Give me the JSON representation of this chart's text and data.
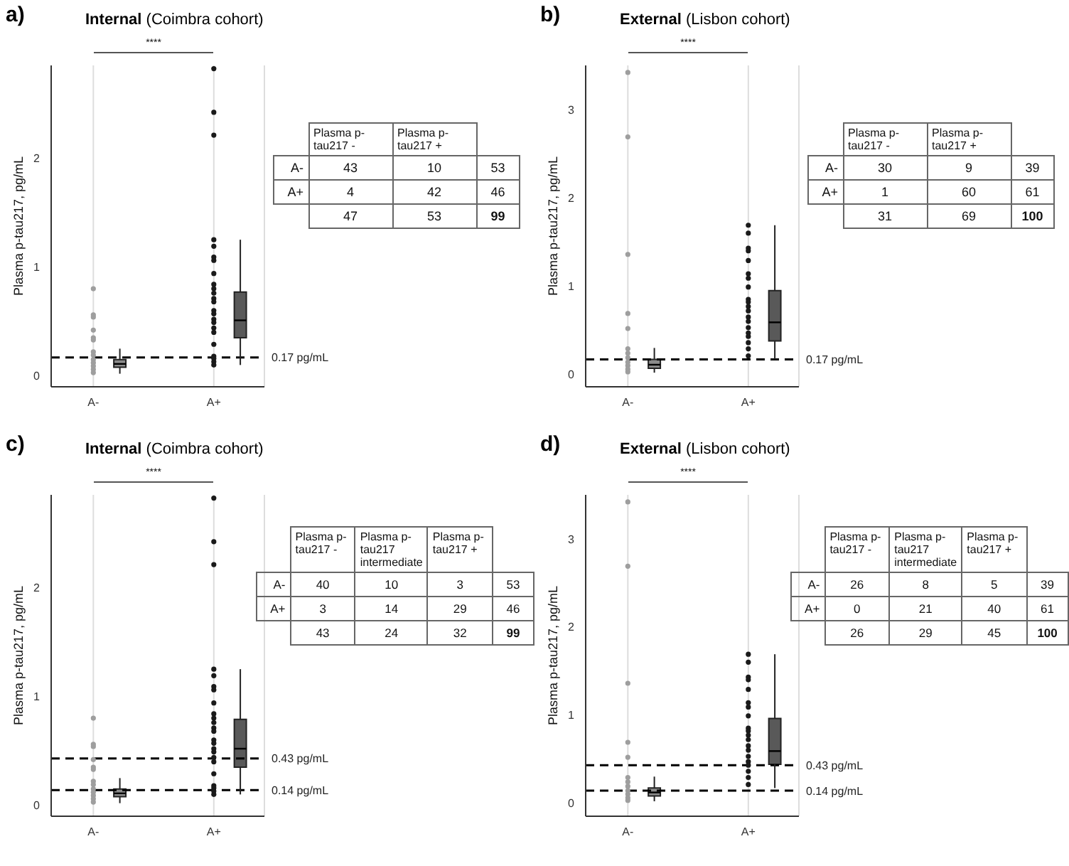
{
  "chart_data": [
    {
      "type": "box",
      "title": "Internal (Coimbra cohort)",
      "ylabel": "Plasma p-tau217, pg/mL",
      "annotations": [
        "a)",
        "****"
      ],
      "categories": [
        "A-",
        "A+"
      ],
      "colors": [
        "#8c8c8c",
        "#595959"
      ],
      "ylim": [
        -0.1,
        2.85
      ],
      "yticks": [
        0,
        1,
        2
      ],
      "grid": "x",
      "boxes": [
        {
          "low": 0.02,
          "q1": 0.08,
          "median": 0.11,
          "q3": 0.15,
          "high": 0.25
        },
        {
          "low": 0.1,
          "q1": 0.35,
          "median": 0.51,
          "q3": 0.77,
          "high": 1.25
        }
      ],
      "series": [
        {
          "type": "scatter",
          "color": "#9e9e9e",
          "x": [
            "A-",
            "A-",
            "A-",
            "A-",
            "A-",
            "A-",
            "A-",
            "A-",
            "A-",
            "A-",
            "A-",
            "A-",
            "A-"
          ],
          "values": [
            0.8,
            0.56,
            0.54,
            0.42,
            0.35,
            0.33,
            0.22,
            0.19,
            0.15,
            0.12,
            0.09,
            0.06,
            0.03
          ]
        },
        {
          "type": "scatter",
          "color": "#1a1a1a",
          "x": [
            "A+",
            "A+",
            "A+",
            "A+",
            "A+",
            "A+",
            "A+",
            "A+",
            "A+",
            "A+",
            "A+",
            "A+",
            "A+",
            "A+",
            "A+",
            "A+",
            "A+",
            "A+",
            "A+",
            "A+",
            "A+",
            "A+",
            "A+",
            "A+"
          ],
          "values": [
            2.82,
            2.42,
            2.21,
            1.25,
            1.19,
            1.09,
            1.06,
            0.94,
            0.84,
            0.8,
            0.76,
            0.71,
            0.68,
            0.6,
            0.57,
            0.52,
            0.49,
            0.44,
            0.4,
            0.29,
            0.18,
            0.16,
            0.13,
            0.1
          ]
        }
      ],
      "ref_lines": [
        {
          "axis": "y",
          "value": 0.17,
          "label": "0.17 pg/mL",
          "line_style": "dashed",
          "color": "#000000"
        }
      ]
    },
    {
      "type": "heatmap",
      "data_labels": true,
      "categories": [
        "Plasma p-tau217 -",
        "Plasma p-tau217 +",
        null
      ],
      "y_categories": [
        "A-",
        "A+",
        null
      ],
      "cells": [
        [
          43,
          10,
          53
        ],
        [
          4,
          42,
          46
        ],
        [
          47,
          53,
          99
        ]
      ]
    },
    {
      "type": "box",
      "title": "External (Lisbon cohort)",
      "ylabel": "Plasma p-tau217, pg/mL",
      "annotations": [
        "b)",
        "****"
      ],
      "categories": [
        "A-",
        "A+"
      ],
      "colors": [
        "#8c8c8c",
        "#595959"
      ],
      "ylim": [
        -0.14,
        3.5
      ],
      "yticks": [
        0,
        1,
        2,
        3
      ],
      "grid": "x",
      "boxes": [
        {
          "low": 0.02,
          "q1": 0.07,
          "median": 0.11,
          "q3": 0.17,
          "high": 0.3
        },
        {
          "low": 0.17,
          "q1": 0.38,
          "median": 0.59,
          "q3": 0.95,
          "high": 1.69
        }
      ],
      "series": [
        {
          "type": "scatter",
          "color": "#9e9e9e",
          "x": [
            "A-",
            "A-",
            "A-",
            "A-",
            "A-",
            "A-",
            "A-",
            "A-",
            "A-",
            "A-",
            "A-",
            "A-"
          ],
          "values": [
            3.42,
            2.69,
            1.36,
            0.69,
            0.52,
            0.29,
            0.24,
            0.19,
            0.14,
            0.1,
            0.06,
            0.03
          ]
        },
        {
          "type": "scatter",
          "color": "#1a1a1a",
          "x": [
            "A+",
            "A+",
            "A+",
            "A+",
            "A+",
            "A+",
            "A+",
            "A+",
            "A+",
            "A+",
            "A+",
            "A+",
            "A+",
            "A+",
            "A+",
            "A+",
            "A+",
            "A+",
            "A+",
            "A+"
          ],
          "values": [
            1.69,
            1.6,
            1.43,
            1.4,
            1.29,
            1.14,
            1.09,
            0.99,
            0.85,
            0.82,
            0.77,
            0.72,
            0.65,
            0.6,
            0.53,
            0.47,
            0.43,
            0.36,
            0.29,
            0.21
          ]
        }
      ],
      "ref_lines": [
        {
          "axis": "y",
          "value": 0.17,
          "label": "0.17 pg/mL",
          "line_style": "dashed",
          "color": "#000000"
        }
      ]
    },
    {
      "type": "heatmap",
      "data_labels": true,
      "categories": [
        "Plasma p-tau217 -",
        "Plasma p-tau217 +",
        null
      ],
      "y_categories": [
        "A-",
        "A+",
        null
      ],
      "cells": [
        [
          30,
          9,
          39
        ],
        [
          1,
          60,
          61
        ],
        [
          31,
          69,
          100
        ]
      ]
    },
    {
      "type": "box",
      "title": "Internal (Coimbra cohort)",
      "ylabel": "Plasma p-tau217, pg/mL",
      "annotations": [
        "c)",
        "****"
      ],
      "categories": [
        "A-",
        "A+"
      ],
      "colors": [
        "#8c8c8c",
        "#595959"
      ],
      "ylim": [
        -0.1,
        2.85
      ],
      "yticks": [
        0,
        1,
        2
      ],
      "grid": "x",
      "boxes": [
        {
          "low": 0.02,
          "q1": 0.08,
          "median": 0.11,
          "q3": 0.15,
          "high": 0.25
        },
        {
          "low": 0.1,
          "q1": 0.35,
          "median": 0.52,
          "q3": 0.79,
          "high": 1.25
        }
      ],
      "series": [
        {
          "type": "scatter",
          "color": "#9e9e9e",
          "x": [
            "A-",
            "A-",
            "A-",
            "A-",
            "A-",
            "A-",
            "A-",
            "A-",
            "A-",
            "A-",
            "A-",
            "A-",
            "A-"
          ],
          "values": [
            0.8,
            0.56,
            0.54,
            0.42,
            0.35,
            0.33,
            0.22,
            0.19,
            0.15,
            0.12,
            0.09,
            0.06,
            0.03
          ]
        },
        {
          "type": "scatter",
          "color": "#1a1a1a",
          "x": [
            "A+",
            "A+",
            "A+",
            "A+",
            "A+",
            "A+",
            "A+",
            "A+",
            "A+",
            "A+",
            "A+",
            "A+",
            "A+",
            "A+",
            "A+",
            "A+",
            "A+",
            "A+",
            "A+",
            "A+",
            "A+",
            "A+",
            "A+",
            "A+"
          ],
          "values": [
            2.82,
            2.42,
            2.21,
            1.25,
            1.19,
            1.09,
            1.06,
            0.94,
            0.84,
            0.8,
            0.76,
            0.71,
            0.68,
            0.6,
            0.57,
            0.52,
            0.49,
            0.44,
            0.4,
            0.29,
            0.18,
            0.16,
            0.13,
            0.1
          ]
        }
      ],
      "ref_lines": [
        {
          "axis": "y",
          "value": 0.43,
          "label": "0.43 pg/mL",
          "line_style": "dashed",
          "color": "#000000"
        },
        {
          "axis": "y",
          "value": 0.14,
          "label": "0.14 pg/mL",
          "line_style": "dashed",
          "color": "#000000"
        }
      ]
    },
    {
      "type": "heatmap",
      "data_labels": true,
      "categories": [
        "Plasma p-tau217 -",
        "Plasma p-tau217 intermediate",
        "Plasma p-tau217 +",
        null
      ],
      "y_categories": [
        "A-",
        "A+",
        null
      ],
      "cells": [
        [
          40,
          10,
          3,
          53
        ],
        [
          3,
          14,
          29,
          46
        ],
        [
          43,
          24,
          32,
          99
        ]
      ]
    },
    {
      "type": "box",
      "title": "External (Lisbon cohort)",
      "ylabel": "Plasma p-tau217, pg/mL",
      "annotations": [
        "d)",
        "****"
      ],
      "categories": [
        "A-",
        "A+"
      ],
      "colors": [
        "#8c8c8c",
        "#595959"
      ],
      "ylim": [
        -0.15,
        3.5
      ],
      "yticks": [
        0,
        1,
        2,
        3
      ],
      "grid": "x",
      "boxes": [
        {
          "low": 0.02,
          "q1": 0.08,
          "median": 0.12,
          "q3": 0.17,
          "high": 0.3
        },
        {
          "low": 0.17,
          "q1": 0.44,
          "median": 0.59,
          "q3": 0.96,
          "high": 1.69
        }
      ],
      "series": [
        {
          "type": "scatter",
          "color": "#9e9e9e",
          "x": [
            "A-",
            "A-",
            "A-",
            "A-",
            "A-",
            "A-",
            "A-",
            "A-",
            "A-",
            "A-",
            "A-",
            "A-"
          ],
          "values": [
            3.42,
            2.69,
            1.36,
            0.69,
            0.52,
            0.29,
            0.24,
            0.19,
            0.14,
            0.1,
            0.06,
            0.03
          ]
        },
        {
          "type": "scatter",
          "color": "#1a1a1a",
          "x": [
            "A+",
            "A+",
            "A+",
            "A+",
            "A+",
            "A+",
            "A+",
            "A+",
            "A+",
            "A+",
            "A+",
            "A+",
            "A+",
            "A+",
            "A+",
            "A+",
            "A+",
            "A+",
            "A+",
            "A+"
          ],
          "values": [
            1.69,
            1.6,
            1.43,
            1.4,
            1.29,
            1.14,
            1.09,
            0.99,
            0.85,
            0.82,
            0.77,
            0.72,
            0.65,
            0.6,
            0.53,
            0.47,
            0.43,
            0.36,
            0.29,
            0.21
          ]
        }
      ],
      "ref_lines": [
        {
          "axis": "y",
          "value": 0.43,
          "label": "0.43 pg/mL",
          "line_style": "dashed",
          "color": "#000000"
        },
        {
          "axis": "y",
          "value": 0.14,
          "label": "0.14 pg/mL",
          "line_style": "dashed",
          "color": "#000000"
        }
      ]
    },
    {
      "type": "heatmap",
      "data_labels": true,
      "categories": [
        "Plasma p-tau217 -",
        "Plasma p-tau217 intermediate",
        "Plasma p-tau217 +",
        null
      ],
      "y_categories": [
        "A-",
        "A+",
        null
      ],
      "cells": [
        [
          26,
          8,
          5,
          39
        ],
        [
          0,
          21,
          40,
          61
        ],
        [
          26,
          29,
          45,
          100
        ]
      ]
    }
  ]
}
